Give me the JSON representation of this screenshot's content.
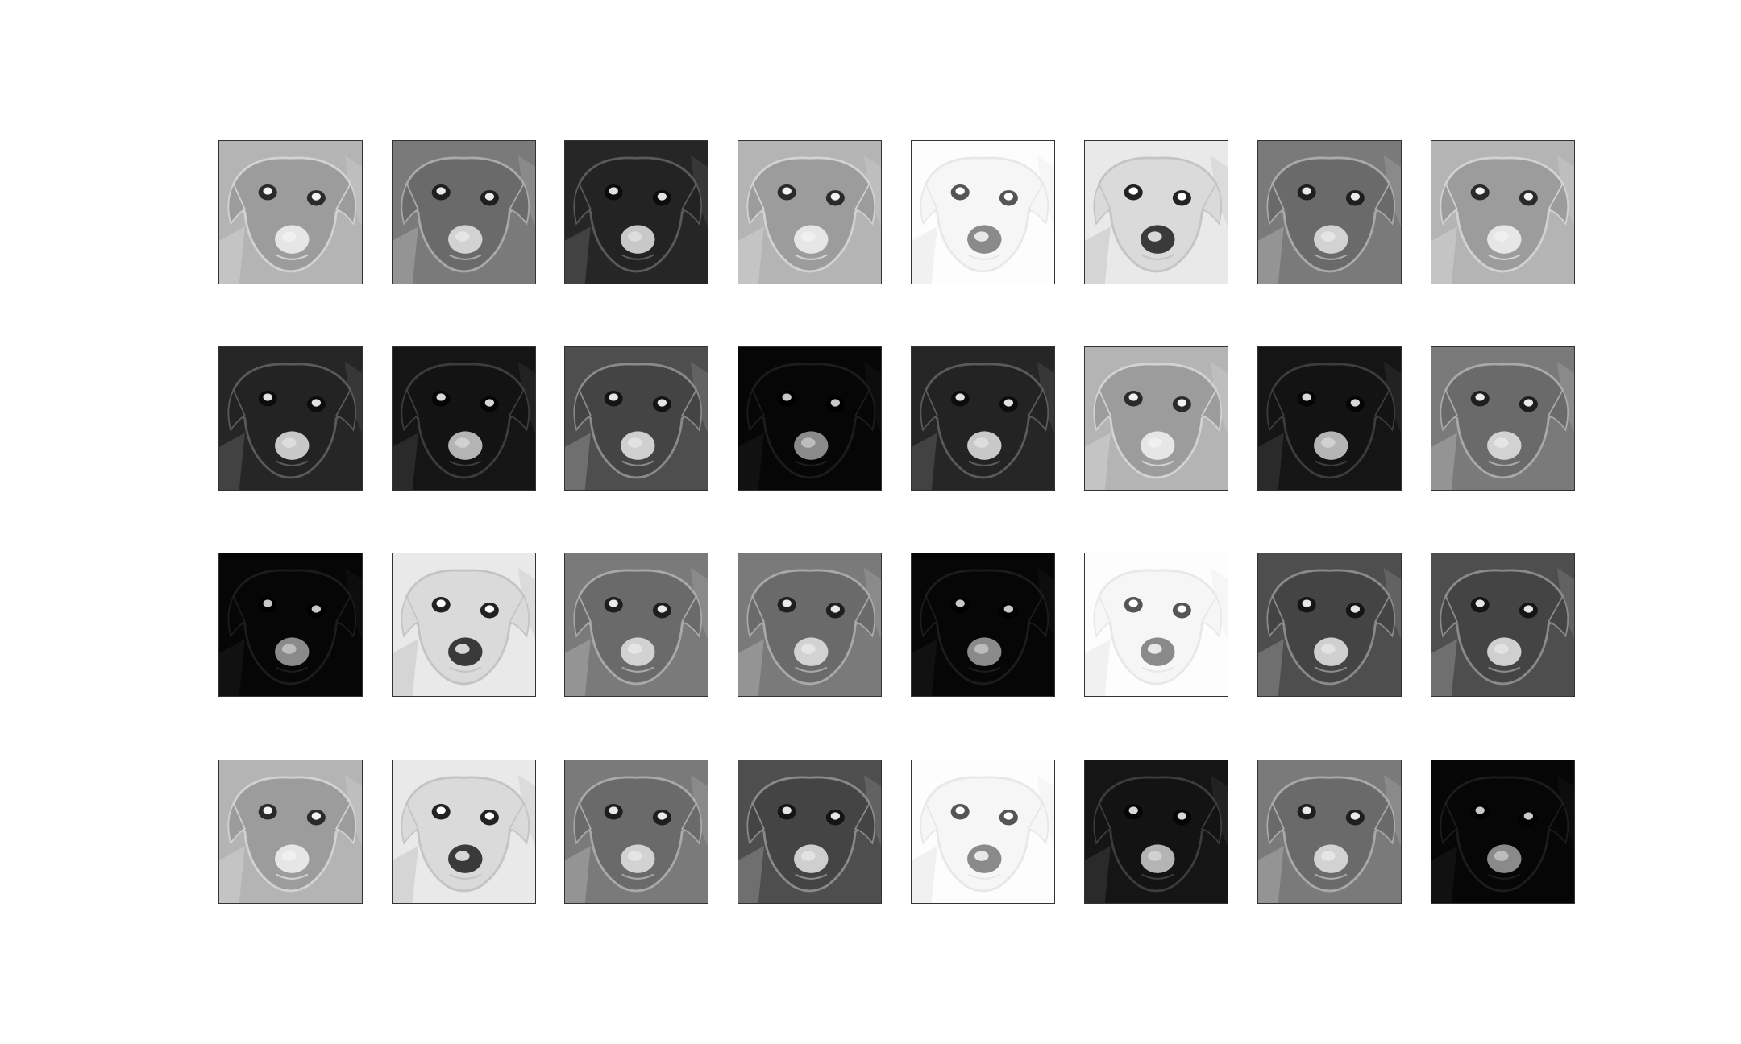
{
  "figure": {
    "rows": 4,
    "columns": 8,
    "colormap": "gray",
    "frame_color": "#333333"
  },
  "panels": [
    {
      "id": 1,
      "tone": "light"
    },
    {
      "id": 2,
      "tone": "mid"
    },
    {
      "id": 3,
      "tone": "dark"
    },
    {
      "id": 4,
      "tone": "light"
    },
    {
      "id": 5,
      "tone": "white"
    },
    {
      "id": 6,
      "tone": "very-light"
    },
    {
      "id": 7,
      "tone": "mid"
    },
    {
      "id": 8,
      "tone": "light"
    },
    {
      "id": 9,
      "tone": "dark"
    },
    {
      "id": 10,
      "tone": "very-dark"
    },
    {
      "id": 11,
      "tone": "mid-dark"
    },
    {
      "id": 12,
      "tone": "black"
    },
    {
      "id": 13,
      "tone": "dark"
    },
    {
      "id": 14,
      "tone": "light"
    },
    {
      "id": 15,
      "tone": "very-dark"
    },
    {
      "id": 16,
      "tone": "mid"
    },
    {
      "id": 17,
      "tone": "black"
    },
    {
      "id": 18,
      "tone": "very-light"
    },
    {
      "id": 19,
      "tone": "mid"
    },
    {
      "id": 20,
      "tone": "mid"
    },
    {
      "id": 21,
      "tone": "black"
    },
    {
      "id": 22,
      "tone": "white"
    },
    {
      "id": 23,
      "tone": "mid-dark"
    },
    {
      "id": 24,
      "tone": "mid-dark"
    },
    {
      "id": 25,
      "tone": "light"
    },
    {
      "id": 26,
      "tone": "very-light"
    },
    {
      "id": 27,
      "tone": "mid"
    },
    {
      "id": 28,
      "tone": "mid-dark"
    },
    {
      "id": 29,
      "tone": "white"
    },
    {
      "id": 30,
      "tone": "very-dark"
    },
    {
      "id": 31,
      "tone": "mid"
    },
    {
      "id": 32,
      "tone": "black"
    }
  ]
}
